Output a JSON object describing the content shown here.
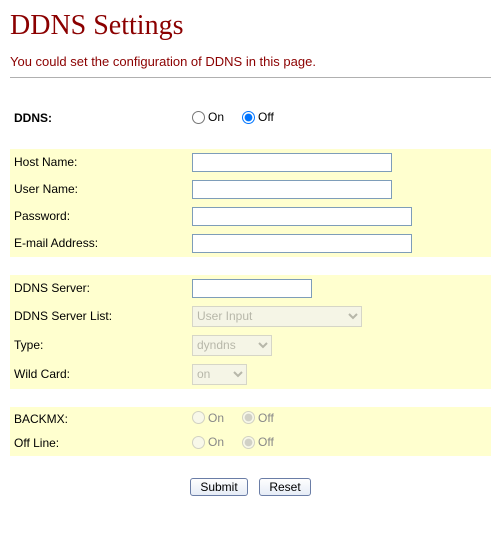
{
  "page": {
    "title": "DDNS Settings",
    "subtitle": "You could set the configuration of DDNS in this page."
  },
  "ddns_enable": {
    "label": "DDNS:",
    "on_label": "On",
    "off_label": "Off",
    "selected": "off"
  },
  "fields": {
    "hostname": {
      "label": "Host Name:",
      "value": ""
    },
    "username": {
      "label": "User Name:",
      "value": ""
    },
    "password": {
      "label": "Password:",
      "value": ""
    },
    "email": {
      "label": "E-mail Address:",
      "value": ""
    },
    "server": {
      "label": "DDNS Server:",
      "value": ""
    },
    "serverlist": {
      "label": "DDNS Server List:",
      "options": [
        "User Input"
      ],
      "selected": "User Input",
      "disabled": true
    },
    "type": {
      "label": "Type:",
      "options": [
        "dyndns"
      ],
      "selected": "dyndns",
      "disabled": true
    },
    "wildcard": {
      "label": "Wild Card:",
      "options": [
        "on"
      ],
      "selected": "on",
      "disabled": true
    },
    "backmx": {
      "label": "BACKMX:",
      "on_label": "On",
      "off_label": "Off",
      "selected": "off",
      "disabled": true
    },
    "offline": {
      "label": "Off Line:",
      "on_label": "On",
      "off_label": "Off",
      "selected": "off",
      "disabled": true
    }
  },
  "buttons": {
    "submit": "Submit",
    "reset": "Reset"
  },
  "colors": {
    "heading": "#8b0000",
    "band_bg": "#ffffcf",
    "input_border": "#7e9db9"
  }
}
